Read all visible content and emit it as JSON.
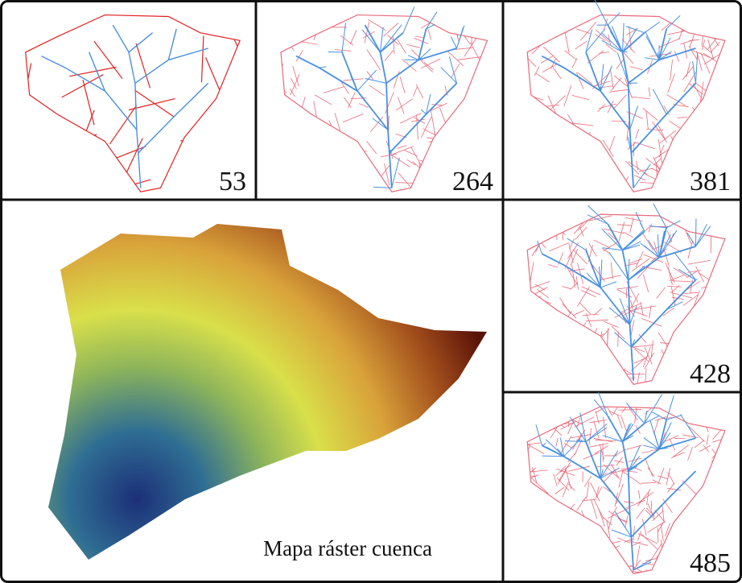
{
  "panels": [
    {
      "label": 53
    },
    {
      "label": 264
    },
    {
      "label": 381
    },
    {
      "label": 428
    },
    {
      "label": 485
    }
  ],
  "raster": {
    "label": "Mapa ráster cuenca"
  }
}
